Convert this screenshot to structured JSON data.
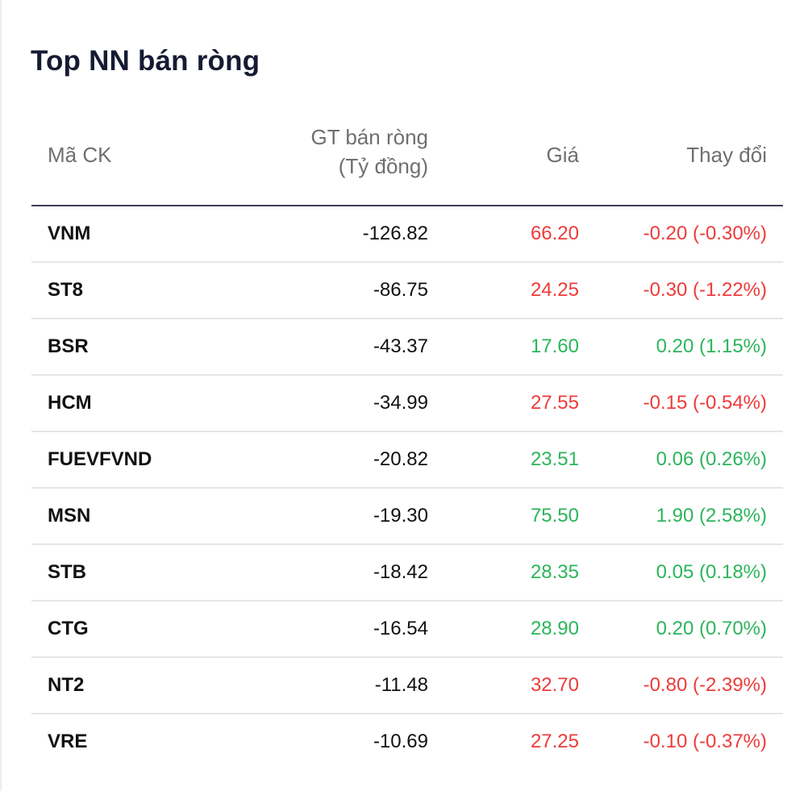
{
  "title": "Top NN bán ròng",
  "columns": {
    "code": "Mã CK",
    "value": "GT bán ròng\n(Tỷ đồng)",
    "price": "Giá",
    "change": "Thay đổi"
  },
  "colors": {
    "up": "#2cb55b",
    "down": "#ee3b3b",
    "header_divider": "#3d3f56"
  },
  "rows": [
    {
      "code": "VNM",
      "value": "-126.82",
      "price": "66.20",
      "change": "-0.20 (-0.30%)",
      "direction": "down"
    },
    {
      "code": "ST8",
      "value": "-86.75",
      "price": "24.25",
      "change": "-0.30 (-1.22%)",
      "direction": "down"
    },
    {
      "code": "BSR",
      "value": "-43.37",
      "price": "17.60",
      "change": "0.20 (1.15%)",
      "direction": "up"
    },
    {
      "code": "HCM",
      "value": "-34.99",
      "price": "27.55",
      "change": "-0.15 (-0.54%)",
      "direction": "down"
    },
    {
      "code": "FUEVFVND",
      "value": "-20.82",
      "price": "23.51",
      "change": "0.06 (0.26%)",
      "direction": "up"
    },
    {
      "code": "MSN",
      "value": "-19.30",
      "price": "75.50",
      "change": "1.90 (2.58%)",
      "direction": "up"
    },
    {
      "code": "STB",
      "value": "-18.42",
      "price": "28.35",
      "change": "0.05 (0.18%)",
      "direction": "up"
    },
    {
      "code": "CTG",
      "value": "-16.54",
      "price": "28.90",
      "change": "0.20 (0.70%)",
      "direction": "up"
    },
    {
      "code": "NT2",
      "value": "-11.48",
      "price": "32.70",
      "change": "-0.80 (-2.39%)",
      "direction": "down"
    },
    {
      "code": "VRE",
      "value": "-10.69",
      "price": "27.25",
      "change": "-0.10 (-0.37%)",
      "direction": "down"
    }
  ]
}
